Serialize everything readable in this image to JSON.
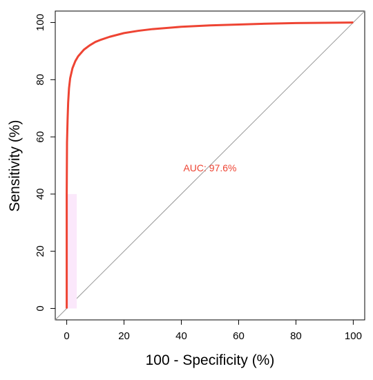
{
  "chart_data": {
    "type": "line",
    "title": "",
    "xlabel": "100 -  Specificity (%)",
    "ylabel": "Sensitivity (%)",
    "xlim": [
      -4,
      104
    ],
    "ylim": [
      -4,
      104
    ],
    "xticks": [
      0,
      20,
      40,
      60,
      80,
      100
    ],
    "yticks": [
      0,
      20,
      40,
      60,
      80,
      100
    ],
    "grid": false,
    "legend": "none",
    "series": [
      {
        "color": "#ee4433",
        "x": [
          0,
          0,
          0.1,
          0.3,
          0.5,
          0.8,
          1.2,
          2,
          3,
          4,
          6,
          8,
          10,
          12,
          15,
          20,
          25,
          30,
          40,
          50,
          60,
          70,
          80,
          90,
          100
        ],
        "y": [
          0,
          40,
          58,
          66,
          72,
          77,
          80.5,
          84,
          86.5,
          88.2,
          90.5,
          92,
          93.2,
          94,
          95,
          96.3,
          97.1,
          97.7,
          98.5,
          99,
          99.3,
          99.6,
          99.8,
          99.9,
          100
        ]
      }
    ],
    "reference_line": {
      "color": "#999999",
      "x": [
        -4,
        104
      ],
      "y": [
        -4,
        104
      ]
    },
    "annotations": [
      {
        "text": "AUC: 97.6%",
        "x": 50,
        "y": 48,
        "color": "#ee4433"
      }
    ]
  }
}
